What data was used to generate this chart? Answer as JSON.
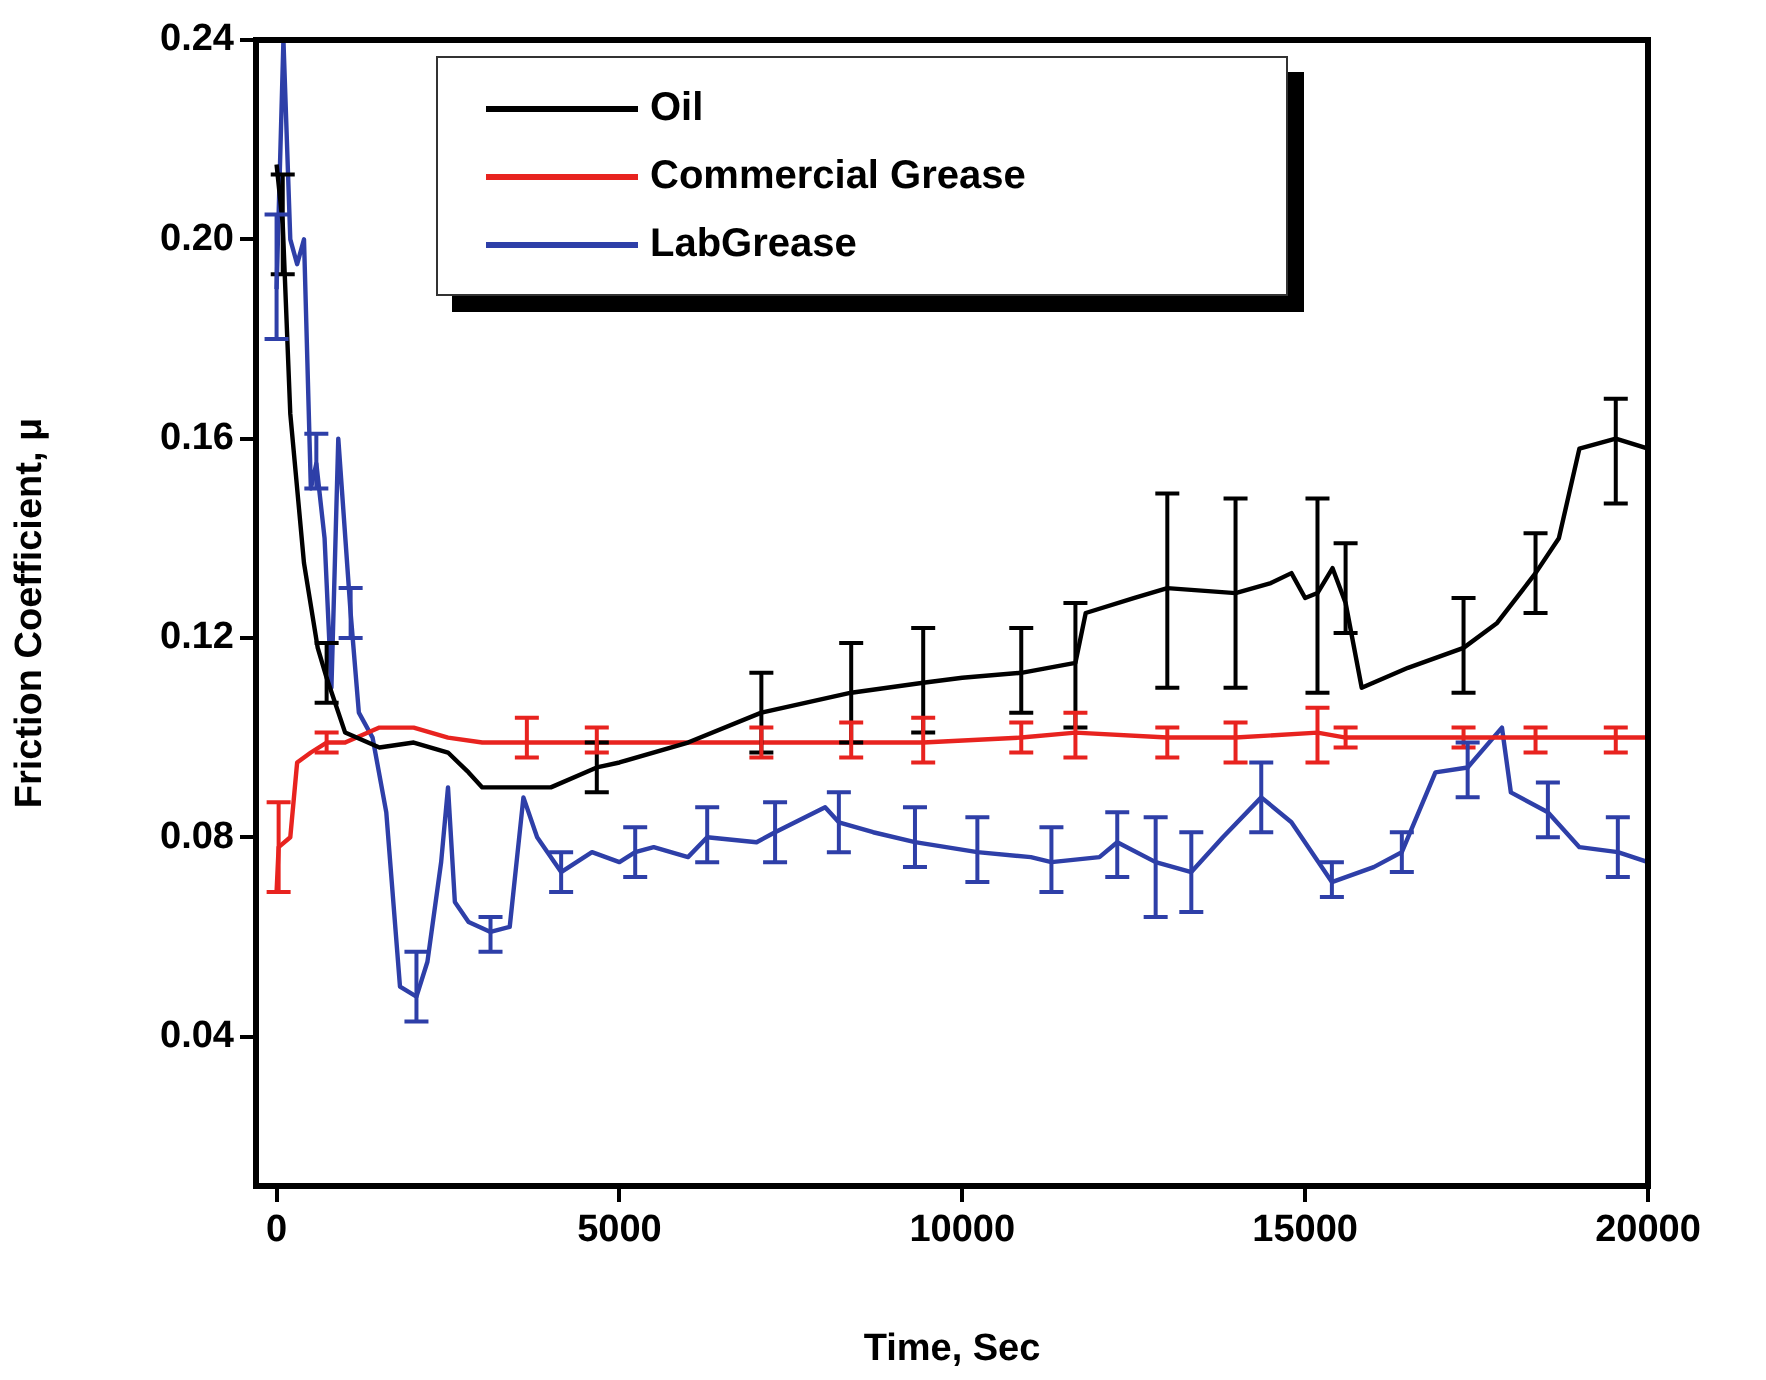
{
  "chart_data": {
    "type": "line",
    "xlabel": "Time, Sec",
    "ylabel": "Friction Coefficient, μ",
    "xlim": [
      -300,
      20000
    ],
    "xticks": [
      0,
      5000,
      10000,
      15000,
      20000
    ],
    "ylim": [
      0.01,
      0.24
    ],
    "yticks": [
      0.04,
      0.08,
      0.12,
      0.16,
      {
        "value": 0.2,
        "label": "0.20"
      },
      0.24
    ],
    "grid": false,
    "legend": "top left",
    "marker": "none",
    "line_style": "solid",
    "series": [
      {
        "name": "Oil",
        "color": "#000000",
        "x": [
          0,
          90,
          200,
          400,
          600,
          730,
          1000,
          1500,
          2000,
          2500,
          2800,
          3000,
          3500,
          4000,
          4670,
          5000,
          6000,
          7070,
          8380,
          9430,
          10000,
          10860,
          11650,
          11800,
          12500,
          12990,
          13985,
          14500,
          14800,
          15000,
          15180,
          15400,
          15590,
          15825,
          16500,
          17310,
          17800,
          18360,
          18700,
          19000,
          19530,
          20000
        ],
        "values": [
          0.215,
          0.203,
          0.165,
          0.135,
          0.118,
          0.112,
          0.101,
          0.098,
          0.099,
          0.097,
          0.093,
          0.09,
          0.09,
          0.09,
          0.094,
          0.095,
          0.099,
          0.105,
          0.109,
          0.111,
          0.112,
          0.113,
          0.115,
          0.125,
          0.128,
          0.13,
          0.129,
          0.131,
          0.133,
          0.128,
          0.129,
          0.134,
          0.127,
          0.11,
          0.114,
          0.118,
          0.123,
          0.133,
          0.14,
          0.158,
          0.16,
          0.158
        ],
        "errors": [
          null,
          [
            0.193,
            0.213
          ],
          null,
          null,
          null,
          [
            0.107,
            0.119
          ],
          null,
          null,
          null,
          null,
          null,
          null,
          null,
          null,
          [
            0.089,
            0.099
          ],
          null,
          null,
          [
            0.097,
            0.113
          ],
          [
            0.099,
            0.119
          ],
          [
            0.101,
            0.122
          ],
          null,
          [
            0.105,
            0.122
          ],
          [
            0.102,
            0.127
          ],
          null,
          null,
          [
            0.11,
            0.149
          ],
          [
            0.11,
            0.148
          ],
          null,
          null,
          null,
          [
            0.109,
            0.148
          ],
          null,
          [
            0.121,
            0.139
          ],
          null,
          null,
          [
            0.109,
            0.128
          ],
          null,
          [
            0.125,
            0.141
          ],
          null,
          null,
          [
            0.147,
            0.168
          ],
          null
        ]
      },
      {
        "name": "Commercial Grease",
        "color": "#e8231f",
        "x": [
          0,
          30,
          200,
          300,
          500,
          730,
          1000,
          1500,
          2000,
          2500,
          3000,
          3650,
          4670,
          6000,
          7070,
          8380,
          9430,
          10860,
          11650,
          12990,
          13985,
          15180,
          15590,
          17310,
          18360,
          19530,
          20000
        ],
        "values": [
          0.069,
          0.078,
          0.08,
          0.095,
          0.097,
          0.099,
          0.099,
          0.102,
          0.102,
          0.1,
          0.099,
          0.099,
          0.099,
          0.099,
          0.099,
          0.099,
          0.099,
          0.1,
          0.101,
          0.1,
          0.1,
          0.101,
          0.1,
          0.1,
          0.1,
          0.1,
          0.1
        ],
        "errors": [
          null,
          [
            0.069,
            0.087
          ],
          null,
          null,
          null,
          [
            0.097,
            0.101
          ],
          null,
          null,
          null,
          null,
          null,
          [
            0.096,
            0.104
          ],
          [
            0.097,
            0.102
          ],
          null,
          [
            0.096,
            0.102
          ],
          [
            0.096,
            0.103
          ],
          [
            0.095,
            0.104
          ],
          [
            0.097,
            0.103
          ],
          [
            0.096,
            0.105
          ],
          [
            0.096,
            0.102
          ],
          [
            0.095,
            0.103
          ],
          [
            0.095,
            0.106
          ],
          [
            0.098,
            0.102
          ],
          [
            0.098,
            0.102
          ],
          [
            0.097,
            0.102
          ],
          [
            0.097,
            0.102
          ],
          null
        ]
      },
      {
        "name": "LabGrease",
        "color": "#2e3fa8",
        "x": [
          0,
          100,
          200,
          300,
          400,
          500,
          580,
          700,
          800,
          900,
          1080,
          1200,
          1400,
          1600,
          1800,
          2040,
          2200,
          2400,
          2500,
          2600,
          2800,
          3120,
          3400,
          3600,
          3800,
          4150,
          4600,
          5000,
          5230,
          5500,
          6000,
          6280,
          7000,
          7270,
          8000,
          8200,
          8700,
          9310,
          10220,
          11000,
          11300,
          12000,
          12260,
          12820,
          13340,
          13800,
          14360,
          14800,
          15390,
          16000,
          16410,
          16900,
          17370,
          17870,
          18000,
          18540,
          19000,
          19560,
          20000
        ],
        "values": [
          0.19,
          0.24,
          0.2,
          0.195,
          0.2,
          0.15,
          0.155,
          0.14,
          0.11,
          0.16,
          0.125,
          0.105,
          0.1,
          0.085,
          0.05,
          0.048,
          0.055,
          0.075,
          0.09,
          0.067,
          0.063,
          0.061,
          0.062,
          0.088,
          0.08,
          0.073,
          0.077,
          0.075,
          0.077,
          0.078,
          0.076,
          0.08,
          0.079,
          0.081,
          0.086,
          0.083,
          0.081,
          0.079,
          0.077,
          0.076,
          0.075,
          0.076,
          0.079,
          0.075,
          0.073,
          0.08,
          0.088,
          0.083,
          0.071,
          0.074,
          0.077,
          0.093,
          0.094,
          0.102,
          0.089,
          0.085,
          0.078,
          0.077,
          0.075
        ],
        "errors": [
          [
            0.18,
            0.205
          ],
          null,
          null,
          null,
          null,
          null,
          [
            0.15,
            0.161
          ],
          null,
          null,
          null,
          [
            0.12,
            0.13
          ],
          null,
          null,
          null,
          null,
          [
            0.043,
            0.057
          ],
          null,
          null,
          null,
          null,
          null,
          [
            0.057,
            0.064
          ],
          null,
          null,
          null,
          [
            0.069,
            0.077
          ],
          null,
          null,
          [
            0.072,
            0.082
          ],
          null,
          null,
          [
            0.075,
            0.086
          ],
          null,
          [
            0.075,
            0.087
          ],
          null,
          [
            0.077,
            0.089
          ],
          null,
          [
            0.074,
            0.086
          ],
          [
            0.071,
            0.084
          ],
          null,
          [
            0.069,
            0.082
          ],
          null,
          [
            0.072,
            0.085
          ],
          [
            0.064,
            0.084
          ],
          [
            0.065,
            0.081
          ],
          null,
          [
            0.081,
            0.095
          ],
          null,
          [
            0.068,
            0.075
          ],
          null,
          [
            0.073,
            0.081
          ],
          null,
          [
            0.088,
            0.099
          ],
          null,
          null,
          [
            0.08,
            0.091
          ],
          null,
          [
            0.072,
            0.084
          ],
          null
        ]
      }
    ]
  }
}
